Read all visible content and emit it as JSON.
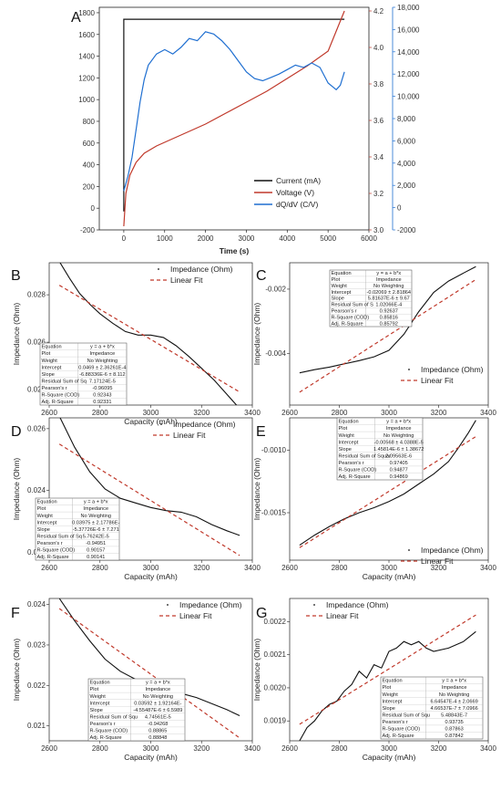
{
  "chart_data": [
    {
      "panel": "A",
      "type": "line",
      "xlabel": "Time (s)",
      "xlim": [
        -600,
        6000
      ],
      "x_ticks": [
        0,
        1000,
        2000,
        3000,
        4000,
        5000,
        6000
      ],
      "left_axis": {
        "lim": [
          -200,
          1850
        ],
        "ticks": [
          -200,
          0,
          200,
          400,
          600,
          800,
          1000,
          1200,
          1400,
          1600,
          1800
        ],
        "color": "#222222"
      },
      "right_axis_1": {
        "lim": [
          3.0,
          4.22
        ],
        "ticks": [
          "3.0",
          "3.2",
          "3.4",
          "3.6",
          "3.8",
          "4.0",
          "4.2"
        ],
        "color": "#c0392b"
      },
      "right_axis_2": {
        "lim": [
          -2000,
          18000
        ],
        "ticks": [
          "-2000",
          "0",
          "2,000",
          "4,000",
          "6,000",
          "8,000",
          "10,000",
          "12,000",
          "14,000",
          "16,000",
          "18,000"
        ],
        "color": "#1f6fd1"
      },
      "legend": [
        "Current (mA)",
        "Voltage (V)",
        "dQ/dV (C/V)"
      ],
      "legend_placement": "bottom-right",
      "series": [
        {
          "name": "Current (mA)",
          "axis": "left",
          "color": "#111111",
          "x": [
            0,
            0,
            5400,
            5400
          ],
          "y": [
            -30,
            1740,
            1740,
            1740
          ]
        },
        {
          "name": "Voltage (V)",
          "axis": "right1",
          "color": "#c0392b",
          "x": [
            0,
            50,
            150,
            300,
            500,
            800,
            1200,
            1600,
            2000,
            2500,
            3000,
            3500,
            4000,
            4500,
            5000,
            5400
          ],
          "y": [
            3.02,
            3.2,
            3.3,
            3.37,
            3.42,
            3.46,
            3.5,
            3.54,
            3.58,
            3.64,
            3.7,
            3.76,
            3.83,
            3.9,
            3.98,
            4.2
          ]
        },
        {
          "name": "dQ/dV (C/V)",
          "axis": "right2",
          "color": "#1f6fd1",
          "x": [
            0,
            100,
            200,
            300,
            400,
            500,
            600,
            800,
            1000,
            1200,
            1400,
            1600,
            1800,
            2000,
            2200,
            2400,
            2600,
            2800,
            3000,
            3200,
            3400,
            3600,
            3800,
            4000,
            4200,
            4400,
            4600,
            4800,
            5000,
            5200,
            5300,
            5400
          ],
          "y": [
            1500,
            2800,
            4500,
            7000,
            9500,
            11500,
            12800,
            13800,
            14200,
            13800,
            14400,
            15200,
            15000,
            15800,
            15600,
            15000,
            14200,
            13200,
            12200,
            11600,
            11400,
            11700,
            12000,
            12400,
            12800,
            12600,
            13000,
            12600,
            11200,
            10600,
            11000,
            12200
          ]
        }
      ]
    },
    {
      "panel": "B",
      "type": "line",
      "xlabel": "Capacity (mAh)",
      "ylabel": "Impedance (Ohm)",
      "xlim": [
        2600,
        3400
      ],
      "ylim": [
        0.02335,
        0.02935
      ],
      "x_ticks": [
        2600,
        2800,
        3000,
        3200,
        3400
      ],
      "y_ticks": [
        "0.024",
        "0.026",
        "0.028"
      ],
      "legend": [
        "Impedance (Ohm)",
        "Linear Fit"
      ],
      "legend_placement": "top-right",
      "series": [
        {
          "name": "Impedance (Ohm)",
          "x": [
            2640,
            2680,
            2720,
            2760,
            2800,
            2850,
            2900,
            2950,
            3000,
            3050,
            3100,
            3150,
            3200,
            3250,
            3300,
            3350
          ],
          "y": [
            0.0294,
            0.0287,
            0.02805,
            0.0276,
            0.0272,
            0.0268,
            0.02645,
            0.0263,
            0.0263,
            0.0262,
            0.02585,
            0.0254,
            0.0249,
            0.0244,
            0.0238,
            0.0232
          ]
        },
        {
          "name": "Linear Fit",
          "x": [
            2640,
            3350
          ],
          "y": [
            0.0284,
            0.0239
          ]
        }
      ],
      "stats": [
        [
          "Equation",
          "y = a + b*x"
        ],
        [
          "Plot",
          "Impedance"
        ],
        [
          "Weight",
          "No Weighting"
        ],
        [
          "Intercept",
          "0.0469 ± 2.36261E-4"
        ],
        [
          "Slope",
          "-6.88336E-6 ± 8.112"
        ],
        [
          "Residual Sum of Sq",
          "7.17124E-5"
        ],
        [
          "Pearson's r",
          "-0.96095"
        ],
        [
          "R-Square (COD)",
          "0.92343"
        ],
        [
          "Adj. R-Square",
          "0.92331"
        ]
      ]
    },
    {
      "panel": "C",
      "type": "line",
      "xlabel": "Capacity (mAh)",
      "ylabel": "Impedance (Ohm)",
      "xlim": [
        2600,
        3400
      ],
      "ylim": [
        -0.0056,
        -0.00118
      ],
      "x_ticks": [
        2600,
        2800,
        3000,
        3200,
        3400
      ],
      "y_ticks": [
        "-0.004",
        "-0.002"
      ],
      "legend": [
        "Impedance (Ohm)",
        "Linear Fit"
      ],
      "legend_placement": "bottom-right",
      "series": [
        {
          "name": "Impedance (Ohm)",
          "x": [
            2640,
            2700,
            2760,
            2820,
            2880,
            2940,
            3000,
            3060,
            3120,
            3180,
            3240,
            3300,
            3350
          ],
          "y": [
            -0.0046,
            -0.0045,
            -0.00442,
            -0.00432,
            -0.00422,
            -0.0041,
            -0.0039,
            -0.0034,
            -0.0027,
            -0.0021,
            -0.00175,
            -0.0015,
            -0.0013
          ]
        },
        {
          "name": "Linear Fit",
          "x": [
            2640,
            3350
          ],
          "y": [
            -0.0052,
            -0.0017
          ]
        }
      ],
      "stats": [
        [
          "Equation",
          "y = a + b*x"
        ],
        [
          "Plot",
          "Impedance"
        ],
        [
          "Weight",
          "No Weighting"
        ],
        [
          "Intercept",
          "-0.02069 ± 2.81864"
        ],
        [
          "Slope",
          "5.81637E-6 ± 9.67"
        ],
        [
          "Residual Sum of S",
          "1.02066E-4"
        ],
        [
          "Pearson's r",
          "0.92637"
        ],
        [
          "R-Square (COD)",
          "0.85816"
        ],
        [
          "Adj. R-Square",
          "0.85792"
        ]
      ]
    },
    {
      "panel": "D",
      "type": "line",
      "xlabel": "Capacity (mAh)",
      "ylabel": "Impedance (Ohm)",
      "xlim": [
        2600,
        3400
      ],
      "ylim": [
        0.02175,
        0.02635
      ],
      "x_ticks": [
        2600,
        2800,
        3000,
        3200,
        3400
      ],
      "y_ticks": [
        "0.022",
        "0.024",
        "0.026"
      ],
      "legend": [
        "Impedance (Ohm)",
        "Linear Fit"
      ],
      "legend_placement": "top-right",
      "series": [
        {
          "name": "Impedance (Ohm)",
          "x": [
            2640,
            2700,
            2760,
            2820,
            2880,
            2940,
            3000,
            3060,
            3120,
            3180,
            3240,
            3300,
            3350
          ],
          "y": [
            0.0264,
            0.0254,
            0.0246,
            0.02405,
            0.02375,
            0.0236,
            0.02345,
            0.02335,
            0.0233,
            0.02315,
            0.0229,
            0.0227,
            0.02255
          ]
        },
        {
          "name": "Linear Fit",
          "x": [
            2640,
            3350
          ],
          "y": [
            0.0255,
            0.0219
          ]
        }
      ],
      "stats": [
        [
          "Equation",
          "y = a + b*x"
        ],
        [
          "Plot",
          "Impedance"
        ],
        [
          "Weight",
          "No Weighting"
        ],
        [
          "Intercept",
          "0.03975 ± 2.17786E-"
        ],
        [
          "Slope",
          "-5.37726E-6 ± 7.271"
        ],
        [
          "Residual Sum of Sq",
          "5.76242E-5"
        ],
        [
          "Pearson's r",
          "-0.94951"
        ],
        [
          "R-Square (COD)",
          "0.90157"
        ],
        [
          "Adj. R-Square",
          "0.90141"
        ]
      ]
    },
    {
      "panel": "E",
      "type": "line",
      "xlabel": "Capacity (mAh)",
      "ylabel": "Impedance (Ohm)",
      "xlim": [
        2600,
        3400
      ],
      "ylim": [
        -0.00188,
        -0.00074
      ],
      "x_ticks": [
        2600,
        2800,
        3000,
        3200,
        3400
      ],
      "y_ticks": [
        "-0.0015",
        "-0.0010"
      ],
      "legend": [
        "Impedance (Ohm)",
        "Linear Fit"
      ],
      "legend_placement": "bottom-right",
      "series": [
        {
          "name": "Impedance (Ohm)",
          "x": [
            2640,
            2700,
            2760,
            2820,
            2880,
            2940,
            3000,
            3060,
            3120,
            3180,
            3240,
            3280,
            3320,
            3350
          ],
          "y": [
            -0.00176,
            -0.00168,
            -0.00161,
            -0.00155,
            -0.0015,
            -0.00146,
            -0.00141,
            -0.00135,
            -0.00127,
            -0.00119,
            -0.00109,
            -0.00098,
            -0.00086,
            -0.00076
          ]
        },
        {
          "name": "Linear Fit",
          "x": [
            2640,
            3350
          ],
          "y": [
            -0.00178,
            -0.00089
          ]
        }
      ],
      "stats": [
        [
          "Equation",
          "y = a + b*x"
        ],
        [
          "Plot",
          "Impedance"
        ],
        [
          "Weight",
          "No Weighting"
        ],
        [
          "Intercept",
          "-0.00568 ± 4.0388E-5"
        ],
        [
          "Slope",
          "1.45814E-6 ± 1.38672"
        ],
        [
          "Residual Sum of Squar",
          "2.09563E-6"
        ],
        [
          "Pearson's r",
          "0.97405"
        ],
        [
          "R-Square (COD)",
          "0.94877"
        ],
        [
          "Adj. R-Square",
          "0.94869"
        ]
      ]
    },
    {
      "panel": "F",
      "type": "line",
      "xlabel": "Capacity (mAh)",
      "ylabel": "Impedance (Ohm)",
      "xlim": [
        2600,
        3400
      ],
      "ylim": [
        0.02063,
        0.02415
      ],
      "x_ticks": [
        2600,
        2800,
        3000,
        3200,
        3400
      ],
      "y_ticks": [
        "0.021",
        "0.022",
        "0.023",
        "0.024"
      ],
      "legend": [
        "Impedance (Ohm)",
        "Linear Fit"
      ],
      "legend_placement": "top-right",
      "series": [
        {
          "name": "Impedance (Ohm)",
          "x": [
            2640,
            2700,
            2760,
            2820,
            2880,
            2940,
            3000,
            3060,
            3120,
            3180,
            3240,
            3300,
            3350
          ],
          "y": [
            0.02415,
            0.0236,
            0.0231,
            0.02265,
            0.02235,
            0.02215,
            0.022,
            0.02185,
            0.0218,
            0.0217,
            0.02155,
            0.0214,
            0.02125
          ]
        },
        {
          "name": "Linear Fit",
          "x": [
            2640,
            3350
          ],
          "y": [
            0.0239,
            0.0207
          ]
        }
      ],
      "stats": [
        [
          "Equation",
          "y = a + b*x"
        ],
        [
          "Plot",
          "Impedance"
        ],
        [
          "Weight",
          "No Weighting"
        ],
        [
          "Intercept",
          "0.03592 ± 1.92164E-"
        ],
        [
          "Slope",
          "-4.55487E-6 ± 6.5989"
        ],
        [
          "Residual Sum of Squ",
          "4.74561E-5"
        ],
        [
          "Pearson's r",
          "-0.94268"
        ],
        [
          "R-Square (COD)",
          "0.88865"
        ],
        [
          "Adj. R-Square",
          "0.88848"
        ]
      ]
    },
    {
      "panel": "G",
      "type": "line",
      "xlabel": "Capacity (mAh)",
      "ylabel": "Impedance (Ohm)",
      "xlim": [
        2600,
        3400
      ],
      "ylim": [
        0.00184,
        0.00227
      ],
      "x_ticks": [
        2600,
        2800,
        3000,
        3200,
        3400
      ],
      "y_ticks": [
        "0.0019",
        "0.0020",
        "0.0021",
        "0.0022"
      ],
      "legend": [
        "Impedance (Ohm)",
        "Linear Fit"
      ],
      "legend_placement": "top-left",
      "series": [
        {
          "name": "Impedance (Ohm)",
          "x": [
            2640,
            2670,
            2700,
            2730,
            2760,
            2790,
            2820,
            2850,
            2880,
            2910,
            2940,
            2970,
            3000,
            3030,
            3060,
            3090,
            3120,
            3150,
            3180,
            3240,
            3300,
            3350
          ],
          "y": [
            0.00184,
            0.00188,
            0.0019,
            0.00193,
            0.00195,
            0.00196,
            0.00199,
            0.00201,
            0.00205,
            0.00203,
            0.00207,
            0.00206,
            0.00211,
            0.00212,
            0.00214,
            0.00213,
            0.00214,
            0.00212,
            0.00211,
            0.00212,
            0.00214,
            0.00217
          ]
        },
        {
          "name": "Linear Fit",
          "x": [
            2640,
            3350
          ],
          "y": [
            0.00189,
            0.00222
          ]
        }
      ],
      "stats": [
        [
          "Equation",
          "y = a + b*x"
        ],
        [
          "Plot",
          "Impedance"
        ],
        [
          "Weight",
          "No Weighting"
        ],
        [
          "Intercept",
          "6.64547E-4 ± 2.0669"
        ],
        [
          "Slope",
          "4.66537E-7 ± 7.0966"
        ],
        [
          "Residual Sum of Squ",
          "5.48843E-7"
        ],
        [
          "Pearson's r",
          "0.93735"
        ],
        [
          "R-Square (COD)",
          "0.87863"
        ],
        [
          "Adj. R-Square",
          "0.87842"
        ]
      ]
    }
  ]
}
